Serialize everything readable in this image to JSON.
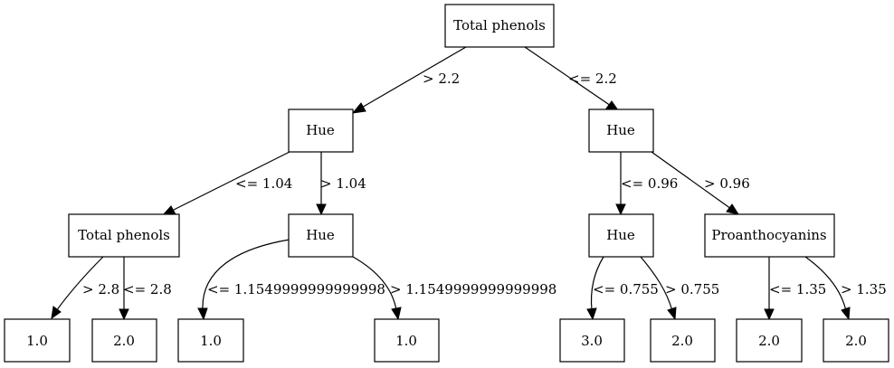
{
  "tree": {
    "nodes": {
      "n0": "Total phenols",
      "n1": "Hue",
      "n2": "Hue",
      "n3": "Total phenols",
      "n4": "Hue",
      "n5": "Hue",
      "n6": "Proanthocyanins",
      "l1": "1.0",
      "l2": "2.0",
      "l3": "1.0",
      "l4": "1.0",
      "l5": "3.0",
      "l6": "2.0",
      "l7": "2.0",
      "l8": "2.0"
    },
    "edges": {
      "e01": "> 2.2",
      "e02": "<= 2.2",
      "e13": "<= 1.04",
      "e14": "> 1.04",
      "e25": "<= 0.96",
      "e26": "> 0.96",
      "e3l1": "> 2.8",
      "e3l2": "<= 2.8",
      "e4l3": "<= 1.1549999999999998",
      "e4l4": "> 1.1549999999999998",
      "e5l5": "<= 0.755",
      "e5l6": "> 0.755",
      "e6l7": "<= 1.35",
      "e6l8": "> 1.35"
    }
  }
}
